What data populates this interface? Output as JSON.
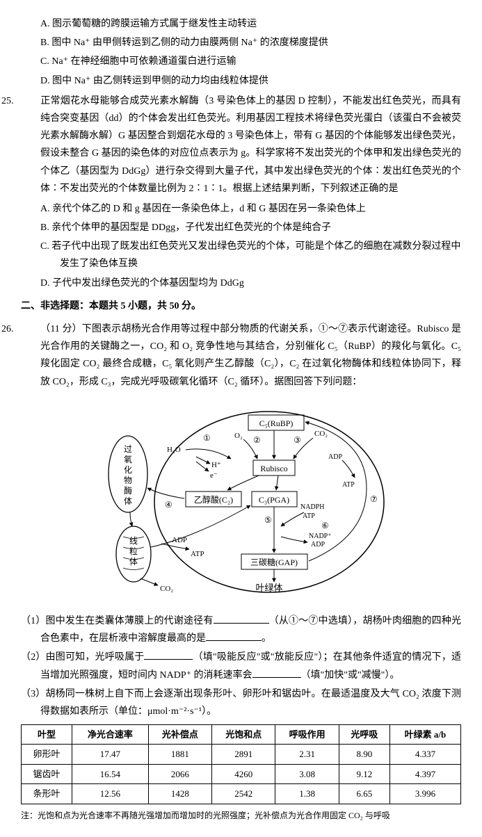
{
  "q24": {
    "options": {
      "A": "图示葡萄糖的跨膜运输方式属于继发性主动转运",
      "B": "图中 Na⁺ 由甲侧转运到乙侧的动力由膜两侧 Na⁺ 的浓度梯度提供",
      "C": "Na⁺ 在神经细胞中可依赖通道蛋白进行运输",
      "D": "图中 Na⁺ 由乙侧转运到甲侧的动力均由线粒体提供"
    }
  },
  "q25": {
    "num": "25.",
    "stem": "正常烟花水母能够合成荧光素水解酶（3 号染色体上的基因 D 控制），不能发出红色荧光，而具有纯合突变基因（dd）的个体会发出红色荧光。利用基因工程技术将绿色荧光蛋白（该蛋白不会被荧光素水解酶水解）G 基因整合到烟花水母的 3 号染色体上，带有 G 基因的个体能够发出绿色荧光，假设未整合 G 基因的染色体的对应位点表示为 g。科学家将不发出荧光的个体甲和发出绿色荧光的个体乙（基因型为 DdGg）进行杂交得到大量子代，其中发出绿色荧光的个体∶发出红色荧光的个体∶不发出荧光的个体数量比例为 2∶1∶1。根据上述结果判断，下列叙述正确的是",
    "options": {
      "A": "亲代个体乙的 D 和 g 基因在一条染色体上，d 和 G 基因在另一条染色体上",
      "B": "亲代个体甲的基因型是 DDgg，子代发出红色荧光的个体是纯合子",
      "C": "若子代中出现了既发出红色荧光又发出绿色荧光的个体，可能是个体乙的细胞在减数分裂过程中发生了染色体互换",
      "D": "子代中发出绿色荧光的个体基因型均为 DdGg"
    }
  },
  "section2": "二、非选择题：本题共 5 小题，共 50 分。",
  "q26": {
    "num": "26.",
    "stem": "（11 分）下图表示胡杨光合作用等过程中部分物质的代谢关系，①～⑦表示代谢途径。Rubisco 是光合作用的关键酶之一，CO₂ 和 O₂ 竞争性地与其结合，分别催化 C₅（RuBP）的羧化与氧化。C₅ 羧化固定 CO₂ 最终合成糖，C₅ 氧化则产生乙醇酸（C₂），C₂ 在过氧化物酶体和线粒体协同下，释放 CO₂，形成 C₃，完成光呼吸碳氧化循环（C₂ 循环）。据图回答下列问题：",
    "diagram": {
      "nodes": {
        "c5": "C₅(RuBP)",
        "rubisco": "Rubisco",
        "c2": "乙醇酸(C₂)",
        "c3": "C₃(PGA)",
        "gap": "三碳糖(GAP)",
        "perox": "过氧化物酶体",
        "mito": "线粒体",
        "chloro": "叶绿体"
      },
      "small_labels": [
        "H₂O",
        "H⁺",
        "e⁻",
        "O₂",
        "CO₂",
        "ADP",
        "ATP",
        "NADPH",
        "NADP⁺"
      ],
      "arrow_labels": [
        "①",
        "②",
        "③",
        "④",
        "⑤",
        "⑥",
        "⑦"
      ],
      "colors": {
        "stroke": "#000000",
        "bg": "#ffffff",
        "label_fontsize": 12
      }
    },
    "sub1a": "（1）图中发生在类囊体薄膜上的代谢途径有",
    "sub1b": "（从①～⑦中选填），胡杨叶肉细胞的四种光合色素中，在层析液中溶解度最高的是",
    "sub1c": "。",
    "sub2a": "（2）由图可知，光呼吸属于",
    "sub2b": "（填\"吸能反应\"或\"放能反应\"）；在其他条件适宜的情况下，适当增加光照强度，短时间内 NADP⁺ 的消耗速率会",
    "sub2c": "（填\"加快\"或\"减慢\"）。",
    "sub3": "（3）胡杨同一株树上自下而上会逐渐出现条形叶、卵形叶和锯齿叶。在最适温度及大气 CO₂ 浓度下测得数据如表所示（单位：μmol·m⁻²·s⁻¹）。",
    "table": {
      "columns": [
        "叶型",
        "净光合速率",
        "光补偿点",
        "光饱和点",
        "呼吸作用",
        "光呼吸",
        "叶绿素 a/b"
      ],
      "rows": [
        [
          "卵形叶",
          "17.47",
          "1881",
          "2891",
          "2.31",
          "8.90",
          "4.337"
        ],
        [
          "锯齿叶",
          "16.54",
          "2066",
          "4260",
          "3.08",
          "9.12",
          "4.397"
        ],
        [
          "条形叶",
          "12.56",
          "1428",
          "2542",
          "1.38",
          "6.65",
          "3.996"
        ]
      ]
    },
    "footnote": "注：光饱和点为光合速率不再随光强增加而增加时的光照强度；光补偿点为光合作用固定 CO₂ 与呼吸"
  }
}
